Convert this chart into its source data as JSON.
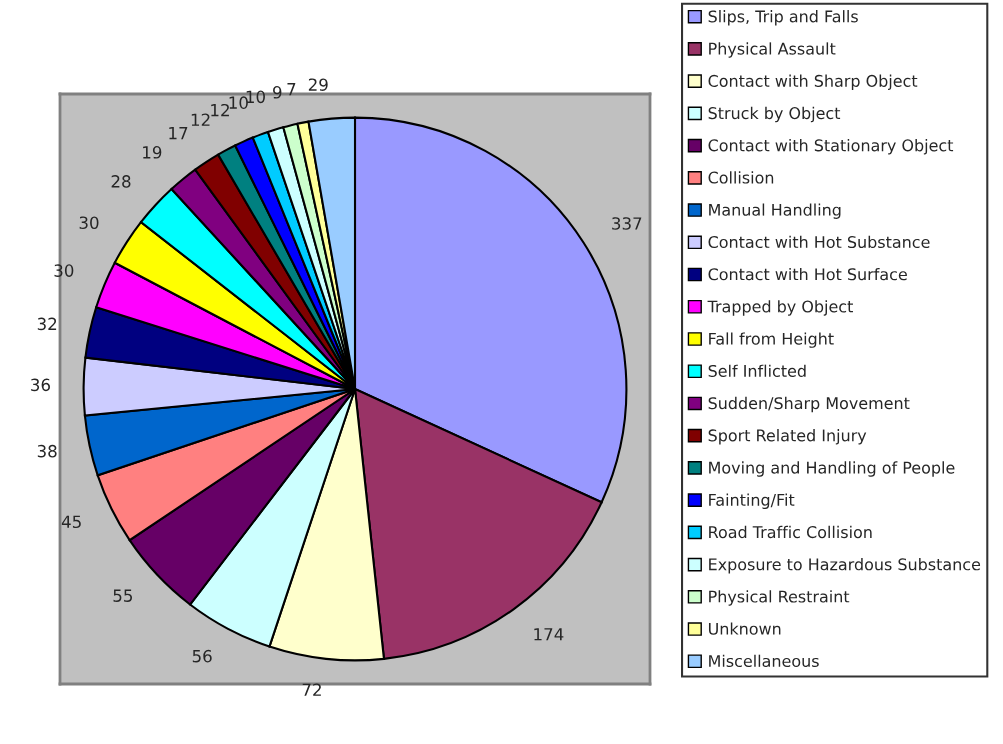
{
  "chart_data": {
    "type": "pie",
    "categories": [
      "Slips, Trip and Falls",
      "Physical Assault",
      "Contact with Sharp Object",
      "Struck by Object",
      "Contact with Stationary Object",
      "Collision",
      "Manual Handling",
      "Contact with Hot Substance",
      "Contact with Hot Surface",
      "Trapped by Object",
      "Fall from Height",
      "Self Inflicted",
      "Sudden/Sharp Movement",
      "Sport Related Injury",
      "Moving and Handling of People",
      "Fainting/Fit",
      "Road Traffic Collision",
      "Exposure to Hazardous Substance",
      "Physical Restraint",
      "Unknown",
      "Miscellaneous"
    ],
    "values": [
      337,
      174,
      72,
      56,
      55,
      45,
      38,
      36,
      32,
      30,
      30,
      28,
      19,
      17,
      12,
      12,
      10,
      10,
      9,
      7,
      29
    ],
    "colors": [
      "#9999ff",
      "#993366",
      "#ffffcc",
      "#ccffff",
      "#660066",
      "#ff8080",
      "#0066cc",
      "#ccccff",
      "#000080",
      "#ff00ff",
      "#ffff00",
      "#00ffff",
      "#800080",
      "#800000",
      "#008080",
      "#0000ff",
      "#00ccff",
      "#ccffff",
      "#ccffcc",
      "#ffff99",
      "#99ccff"
    ],
    "data_labels": true,
    "legend": "right"
  }
}
